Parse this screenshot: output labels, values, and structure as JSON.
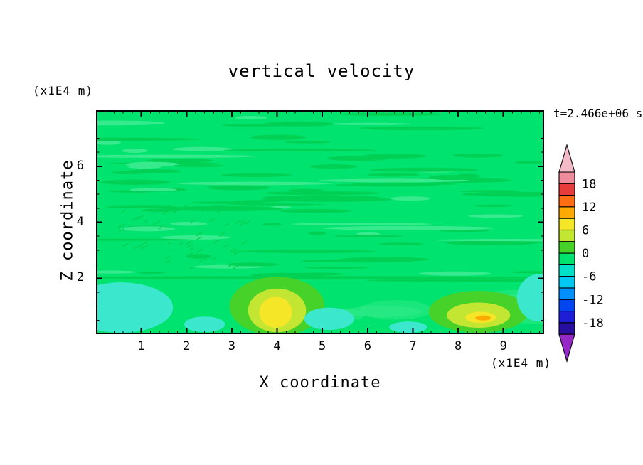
{
  "chart_data": {
    "type": "heatmap",
    "title": "vertical velocity",
    "xlabel": "X coordinate",
    "ylabel": "Z coordinate",
    "x_unit": "(x1E4 m)",
    "y_unit": "(x1E4 m)",
    "time_label": "t=2.466e+06 s",
    "xlim": [
      0,
      9.9
    ],
    "ylim": [
      0,
      8
    ],
    "x_ticks": [
      1,
      2,
      3,
      4,
      5,
      6,
      7,
      8,
      9
    ],
    "y_ticks": [
      2,
      4,
      6
    ],
    "x_minor_step": 0.2,
    "y_minor_step": 0.5,
    "grid": false,
    "legend_position": "right-colorbar",
    "background_level_color": "#00e36e",
    "texture_colors": {
      "dark_streak": "#00d053",
      "light_streak": "#38ea8e"
    },
    "colorbar": {
      "level_max": 21,
      "levels_step": 3,
      "labels": [
        18,
        12,
        6,
        0,
        -6,
        -12,
        -18
      ],
      "arrow_top_color": "#f5bac8",
      "arrow_bottom_color": "#9628c8",
      "colors_top_to_bottom": [
        "#ee8c9b",
        "#e63c3c",
        "#ff6e14",
        "#ffaa00",
        "#f5e628",
        "#c3e632",
        "#46d228",
        "#00e36e",
        "#00dfc8",
        "#00c8f0",
        "#0091ff",
        "#0046f0",
        "#1e1ed7",
        "#280fa0"
      ]
    },
    "features": [
      {
        "name": "downdraft-left",
        "shape": "ellipse",
        "cx": 0.55,
        "cy": 0.95,
        "rx": 1.15,
        "ry": 0.9,
        "level_range": [
          -6,
          -3
        ],
        "color": "#3ce8cd"
      },
      {
        "name": "downdraft-left-small",
        "shape": "ellipse",
        "cx": 2.4,
        "cy": 0.35,
        "rx": 0.45,
        "ry": 0.28,
        "level_range": [
          -6,
          -3
        ],
        "color": "#3ce8cd"
      },
      {
        "name": "updraft-center-outer",
        "shape": "ellipse",
        "cx": 4.0,
        "cy": 1.0,
        "rx": 1.05,
        "ry": 1.05,
        "level_range": [
          0,
          3
        ],
        "color": "#46d228"
      },
      {
        "name": "updraft-center-mid",
        "shape": "ellipse",
        "cx": 4.0,
        "cy": 0.85,
        "rx": 0.64,
        "ry": 0.78,
        "level_range": [
          3,
          6
        ],
        "color": "#c3e632"
      },
      {
        "name": "updraft-center-core",
        "shape": "ellipse",
        "cx": 3.97,
        "cy": 0.78,
        "rx": 0.36,
        "ry": 0.55,
        "level_range": [
          6,
          9
        ],
        "color": "#f5e628"
      },
      {
        "name": "downdraft-mid",
        "shape": "ellipse",
        "cx": 5.15,
        "cy": 0.55,
        "rx": 0.55,
        "ry": 0.4,
        "level_range": [
          -6,
          -3
        ],
        "color": "#3ce8cd"
      },
      {
        "name": "downdraft-bottom-small",
        "shape": "ellipse",
        "cx": 6.9,
        "cy": 0.25,
        "rx": 0.42,
        "ry": 0.2,
        "level_range": [
          -6,
          -3
        ],
        "color": "#3ce8cd"
      },
      {
        "name": "updraft-right-outer",
        "shape": "ellipse",
        "cx": 8.45,
        "cy": 0.8,
        "rx": 1.1,
        "ry": 0.75,
        "level_range": [
          0,
          3
        ],
        "color": "#46d228"
      },
      {
        "name": "updraft-right-mid",
        "shape": "ellipse",
        "cx": 8.45,
        "cy": 0.68,
        "rx": 0.7,
        "ry": 0.45,
        "level_range": [
          3,
          6
        ],
        "color": "#c3e632"
      },
      {
        "name": "updraft-right-core",
        "shape": "ellipse",
        "cx": 8.5,
        "cy": 0.6,
        "rx": 0.34,
        "ry": 0.2,
        "level_range": [
          6,
          9
        ],
        "color": "#f5e628"
      },
      {
        "name": "updraft-right-hotspot",
        "shape": "ellipse",
        "cx": 8.55,
        "cy": 0.58,
        "rx": 0.17,
        "ry": 0.09,
        "level_range": [
          9,
          12
        ],
        "color": "#ffaa00"
      },
      {
        "name": "downdraft-right-edge",
        "shape": "ellipse",
        "cx": 9.8,
        "cy": 1.3,
        "rx": 0.5,
        "ry": 0.85,
        "level_range": [
          -6,
          -3
        ],
        "color": "#3ce8cd"
      }
    ]
  }
}
